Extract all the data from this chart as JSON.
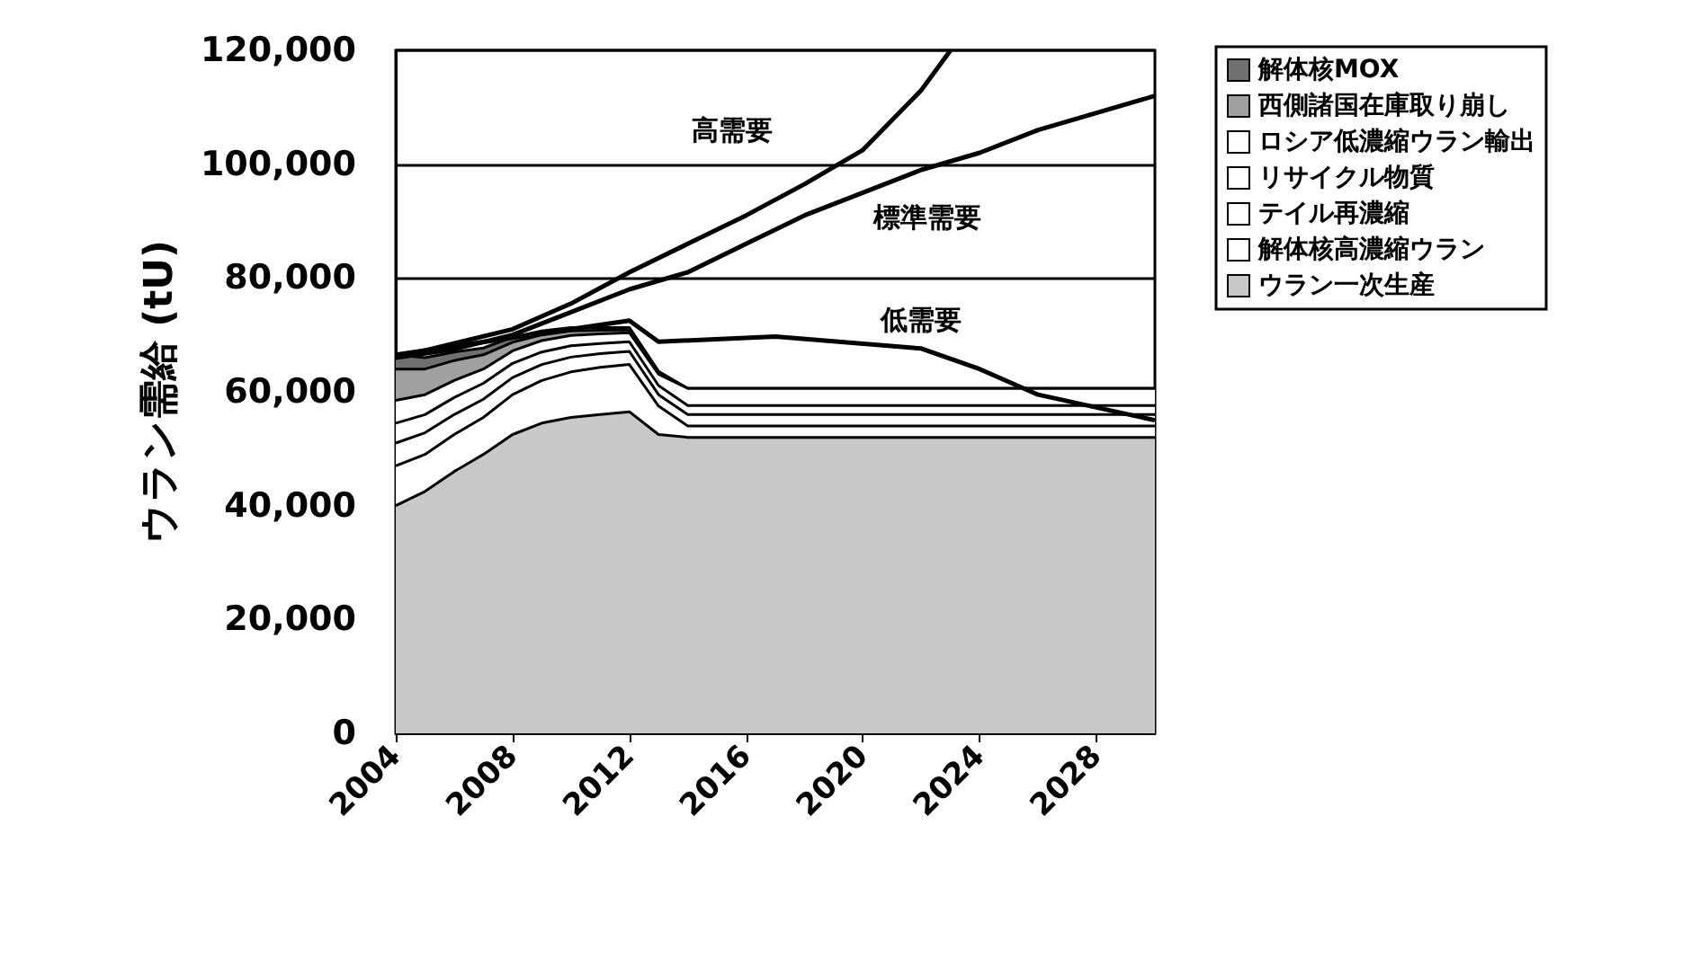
{
  "chart_data": {
    "type": "area",
    "ylabel": "ウラン需給 (tU)",
    "stacked": true,
    "legend": "right",
    "grid": "y",
    "marker": "none",
    "line_style": "solid",
    "x": [
      2004,
      2005,
      2006,
      2007,
      2008,
      2009,
      2010,
      2011,
      2012,
      2013,
      2014,
      2015,
      2016,
      2017,
      2018,
      2019,
      2020,
      2021,
      2022,
      2023,
      2024,
      2025,
      2026,
      2027,
      2028,
      2029,
      2030
    ],
    "xlim": [
      2004,
      2030
    ],
    "xticks": [
      2004,
      2008,
      2012,
      2016,
      2020,
      2024,
      2028
    ],
    "ylim": [
      0,
      120000
    ],
    "yticks": [
      {
        "value": 0,
        "label": "0"
      },
      {
        "value": 20000,
        "label": "20,000"
      },
      {
        "value": 40000,
        "label": "40,000"
      },
      {
        "value": 60000,
        "label": "60,000"
      },
      {
        "value": 80000,
        "label": "80,000"
      },
      {
        "value": 100000,
        "label": "100,000"
      },
      {
        "value": 120000,
        "label": "120,000"
      }
    ],
    "series": [
      {
        "name": "ウラン一次生産",
        "color": "#c8c8c8",
        "values": [
          40000,
          42500,
          46000,
          49000,
          52500,
          54500,
          55500,
          56000,
          56500,
          52500,
          52000,
          52000,
          52000,
          52000,
          52000,
          52000,
          52000,
          52000,
          52000,
          52000,
          52000,
          52000,
          52000,
          52000,
          52000,
          52000,
          52000
        ]
      },
      {
        "name": "解体核高濃縮ウラン",
        "color": "#ffffff",
        "values": [
          7000,
          6500,
          6500,
          6500,
          7000,
          7500,
          8000,
          8300,
          8300,
          5000,
          2000,
          2000,
          2000,
          2000,
          2000,
          2000,
          2000,
          2000,
          2000,
          2000,
          2000,
          2000,
          2000,
          2000,
          2000,
          2000,
          2000
        ]
      },
      {
        "name": "テイル再濃縮",
        "color": "#ffffff",
        "values": [
          4000,
          3800,
          3500,
          3200,
          3000,
          2800,
          2600,
          2400,
          2300,
          2000,
          2000,
          2000,
          2000,
          2000,
          2000,
          2000,
          2000,
          2000,
          2000,
          2000,
          2000,
          2000,
          2000,
          2000,
          2000,
          2000,
          2000
        ]
      },
      {
        "name": "リサイクル物質",
        "color": "#ffffff",
        "values": [
          3500,
          3200,
          3000,
          2800,
          2500,
          2200,
          2000,
          1800,
          1700,
          1600,
          1600,
          1600,
          1600,
          1600,
          1600,
          1600,
          1600,
          1600,
          1600,
          1600,
          1600,
          1600,
          1600,
          1600,
          1600,
          1600,
          1600
        ]
      },
      {
        "name": "ロシア低濃縮ウラン輸出",
        "color": "#ffffff",
        "values": [
          4000,
          3500,
          3000,
          2500,
          2200,
          2000,
          1800,
          1700,
          1600,
          2000,
          3000,
          3000,
          3000,
          3000,
          3000,
          3000,
          3000,
          3000,
          3000,
          3000,
          3000,
          3000,
          3000,
          3000,
          3000,
          3000,
          3000
        ]
      },
      {
        "name": "西側諸国在庫取り崩し",
        "color": "#a0a0a0",
        "values": [
          5500,
          4500,
          3500,
          2500,
          1500,
          1000,
          800,
          600,
          500,
          300,
          0,
          0,
          0,
          0,
          0,
          0,
          0,
          0,
          0,
          0,
          0,
          0,
          0,
          0,
          0,
          0,
          0
        ]
      },
      {
        "name": "解体核MOX",
        "color": "#707070",
        "values": [
          2500,
          2000,
          1500,
          1200,
          900,
          700,
          600,
          500,
          400,
          200,
          0,
          0,
          0,
          0,
          0,
          0,
          0,
          0,
          0,
          0,
          0,
          0,
          0,
          0,
          0,
          0,
          0
        ]
      },
      {
        "type": "line",
        "name": "高需要",
        "color": "#000000",
        "x": [
          2004,
          2008,
          2010,
          2012,
          2014,
          2016,
          2018,
          2020,
          2022,
          2023
        ],
        "values": [
          66000,
          71000,
          75500,
          81000,
          86000,
          91000,
          96500,
          102500,
          113000,
          120000
        ]
      },
      {
        "type": "line",
        "name": "標準需要",
        "color": "#000000",
        "x": [
          2004,
          2006,
          2008,
          2010,
          2012,
          2014,
          2016,
          2018,
          2020,
          2022,
          2024,
          2026,
          2028,
          2030
        ],
        "values": [
          66000,
          67500,
          70000,
          74000,
          78000,
          81000,
          86000,
          91000,
          95000,
          99000,
          102000,
          106000,
          109000,
          112000
        ]
      },
      {
        "type": "line",
        "name": "低需要",
        "color": "#000000",
        "x": [
          2004,
          2008,
          2012,
          2013,
          2017,
          2022,
          2024,
          2026,
          2030
        ],
        "values": [
          66500,
          69500,
          72500,
          68800,
          69700,
          67600,
          64000,
          59500,
          55000
        ]
      }
    ]
  }
}
